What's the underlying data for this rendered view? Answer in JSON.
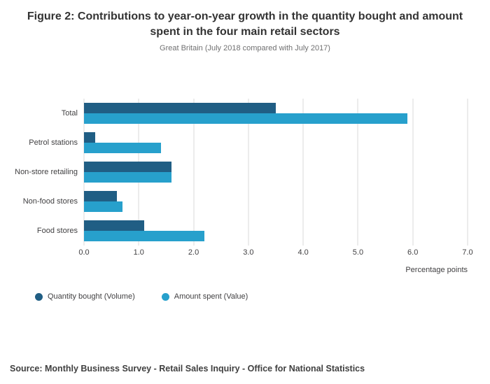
{
  "chart_data": {
    "type": "bar",
    "orientation": "horizontal",
    "title": "Figure 2: Contributions to year-on-year growth in the quantity bought and amount spent in the four main retail sectors",
    "subtitle": "Great Britain (July 2018 compared with July 2017)",
    "categories": [
      "Total",
      "Petrol stations",
      "Non-store retailing",
      "Non-food stores",
      "Food stores"
    ],
    "series": [
      {
        "name": "Quantity bought (Volume)",
        "color": "#205e84",
        "values": [
          3.5,
          0.2,
          1.6,
          0.6,
          1.1
        ]
      },
      {
        "name": "Amount spent (Value)",
        "color": "#27a0cc",
        "values": [
          5.9,
          1.4,
          1.6,
          0.7,
          2.2
        ]
      }
    ],
    "xlabel": "Percentage points",
    "xlim": [
      0,
      7
    ],
    "xticks": [
      "0.0",
      "1.0",
      "2.0",
      "3.0",
      "4.0",
      "5.0",
      "6.0",
      "7.0"
    ],
    "grid": true,
    "legend_position": "bottom"
  },
  "source": "Source: Monthly Business Survey - Retail Sales Inquiry - Office for National Statistics"
}
